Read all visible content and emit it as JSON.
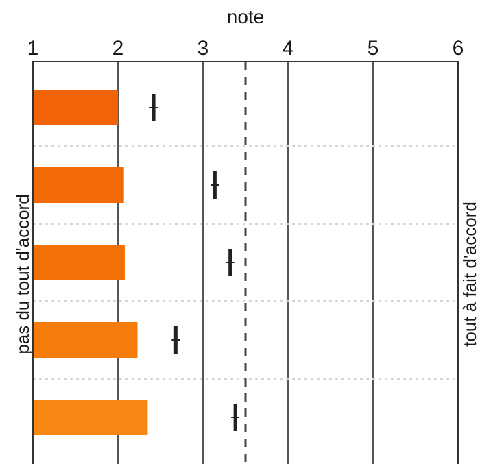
{
  "chart_data": {
    "type": "bar",
    "orientation": "horizontal",
    "xlabel": "note",
    "xlim": [
      1,
      6
    ],
    "xticks": [
      "1",
      "2",
      "3",
      "4",
      "5",
      "6"
    ],
    "left_label": "pas du tout d'accord",
    "right_label": "tout à fait d'accord",
    "reference_line": 3.5,
    "grid": "vertical lines at 2, 3, 4, 5; dotted row separators",
    "series": [
      {
        "values": [
          2.0,
          2.07,
          2.08,
          2.23,
          2.35
        ],
        "colors": [
          "#f26306",
          "#f26a06",
          "#f37007",
          "#f57c0b",
          "#f78712"
        ]
      }
    ],
    "markers": [
      2.42,
      3.14,
      3.32,
      2.68,
      3.38
    ]
  }
}
